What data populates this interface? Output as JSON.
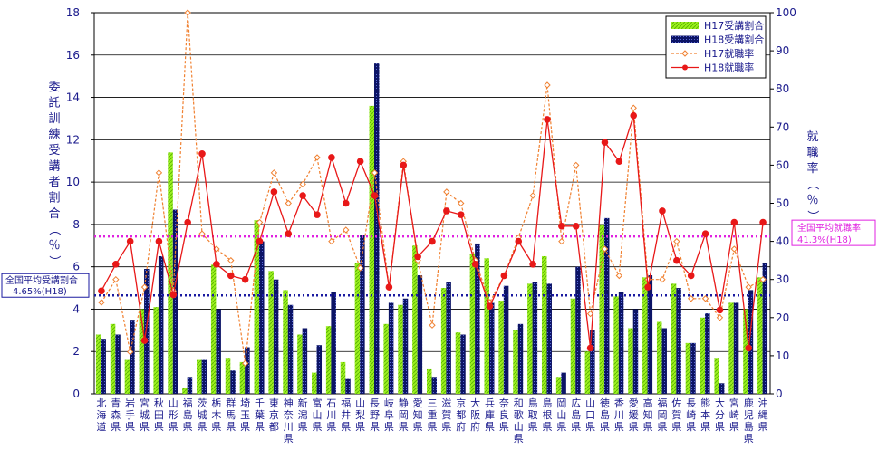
{
  "chart_data": {
    "type": "bar",
    "categories": [
      "北海道",
      "青森県",
      "岩手県",
      "宮城県",
      "秋田県",
      "山形県",
      "福島県",
      "茨城県",
      "栃木県",
      "群馬県",
      "埼玉県",
      "千葉県",
      "東京都",
      "神奈川県",
      "新潟県",
      "富山県",
      "石川県",
      "福井県",
      "山梨県",
      "長野県",
      "岐阜県",
      "静岡県",
      "愛知県",
      "三重県",
      "滋賀県",
      "京都府",
      "大阪府",
      "兵庫県",
      "奈良県",
      "和歌山県",
      "鳥取県",
      "島根県",
      "岡山県",
      "広島県",
      "山口県",
      "徳島県",
      "香川県",
      "愛媛県",
      "高知県",
      "福岡県",
      "佐賀県",
      "長崎県",
      "熊本県",
      "大分県",
      "宮崎県",
      "鹿児島県",
      "沖縄県"
    ],
    "series": [
      {
        "name": "H17受講割合",
        "kind": "bar",
        "axis": "left",
        "color": "#7fe000",
        "values": [
          2.8,
          3.3,
          1.6,
          4.0,
          4.1,
          11.4,
          0.3,
          1.6,
          6.1,
          1.7,
          1.5,
          8.2,
          5.8,
          4.9,
          2.8,
          1.0,
          3.2,
          1.5,
          6.2,
          13.6,
          3.3,
          4.2,
          7.0,
          1.2,
          5.0,
          2.9,
          6.6,
          6.4,
          4.4,
          3.0,
          5.2,
          6.5,
          0.8,
          4.5,
          2.0,
          8.0,
          4.6,
          3.1,
          5.5,
          3.4,
          5.2,
          2.4,
          3.6,
          1.7,
          4.3,
          4.0,
          5.5
        ]
      },
      {
        "name": "H18受講割合",
        "kind": "bar",
        "axis": "left",
        "color": "#101870",
        "values": [
          2.6,
          2.8,
          3.5,
          5.9,
          6.5,
          8.7,
          0.8,
          1.6,
          4.0,
          1.1,
          2.2,
          7.2,
          5.4,
          4.2,
          3.1,
          2.3,
          4.8,
          0.7,
          7.5,
          15.6,
          4.3,
          4.5,
          5.6,
          0.8,
          5.3,
          2.8,
          7.1,
          4.3,
          5.1,
          3.3,
          5.3,
          5.2,
          1.0,
          6.0,
          3.0,
          8.3,
          4.8,
          4.0,
          5.6,
          3.1,
          5.0,
          2.4,
          3.8,
          0.5,
          4.3,
          4.9,
          6.2
        ]
      },
      {
        "name": "H17就職率",
        "kind": "line",
        "axis": "right",
        "color": "#f08030",
        "dashed": true,
        "values": [
          24,
          30,
          11,
          28,
          58,
          27,
          100,
          42,
          38,
          35,
          8,
          45,
          58,
          50,
          55,
          62,
          40,
          43,
          33,
          58,
          28,
          61,
          35,
          18,
          53,
          50,
          35,
          24,
          31,
          41,
          52,
          81,
          40,
          60,
          21,
          38,
          31,
          75,
          30,
          30,
          40,
          25,
          25,
          20,
          38,
          28,
          30
        ]
      },
      {
        "name": "H18就職率",
        "kind": "line",
        "axis": "right",
        "color": "#e81818",
        "dashed": false,
        "values": [
          27,
          34,
          40,
          14,
          40,
          26,
          45,
          63,
          34,
          31,
          30,
          40,
          53,
          42,
          52,
          47,
          62,
          50,
          61,
          52,
          28,
          60,
          36,
          40,
          48,
          47,
          34,
          23,
          31,
          40,
          34,
          72,
          44,
          44,
          12,
          66,
          61,
          73,
          28,
          48,
          35,
          31,
          42,
          22,
          45,
          12,
          45
        ]
      }
    ],
    "ylim_left": [
      0,
      18
    ],
    "yticks_left": [
      0,
      2,
      4,
      6,
      8,
      10,
      12,
      14,
      16,
      18
    ],
    "ylim_right": [
      0,
      100
    ],
    "yticks_right": [
      0,
      10,
      20,
      30,
      40,
      50,
      60,
      70,
      80,
      90,
      100
    ],
    "ylabel_left": "委託訓練受講者割合（％）",
    "ylabel_right": "就職率（％）",
    "grid": true,
    "legend_position": "top-right",
    "reference_lines": [
      {
        "axis": "left",
        "value": 4.65,
        "color": "#1a1aa0",
        "label": "全国平均受講割合",
        "label2": "4.65%(H18)"
      },
      {
        "axis": "right",
        "value": 41.3,
        "color": "#e020e0",
        "label": "全国平均就職率",
        "label2": "41.3%(H18)"
      }
    ]
  }
}
